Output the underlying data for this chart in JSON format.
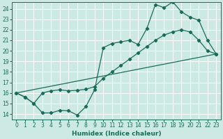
{
  "xlabel": "Humidex (Indice chaleur)",
  "bg_color": "#cce9e4",
  "line_color": "#1a6b5a",
  "grid_color": "#ffffff",
  "xlim": [
    -0.5,
    23.5
  ],
  "ylim": [
    13.5,
    24.6
  ],
  "xticks": [
    0,
    1,
    2,
    3,
    4,
    5,
    6,
    7,
    8,
    9,
    10,
    11,
    12,
    13,
    14,
    15,
    16,
    17,
    18,
    19,
    20,
    21,
    22,
    23
  ],
  "yticks": [
    14,
    15,
    16,
    17,
    18,
    19,
    20,
    21,
    22,
    23,
    24
  ],
  "line1_x": [
    0,
    1,
    2,
    3,
    4,
    5,
    6,
    7,
    8,
    9,
    10,
    11,
    12,
    13,
    14,
    15,
    16,
    17,
    18,
    19,
    20,
    21,
    22,
    23
  ],
  "line1_y": [
    16.0,
    15.6,
    15.0,
    14.1,
    14.1,
    14.35,
    14.3,
    13.9,
    14.7,
    16.3,
    20.3,
    20.7,
    20.85,
    21.0,
    20.6,
    22.1,
    24.4,
    24.1,
    24.65,
    23.7,
    23.2,
    22.9,
    21.0,
    19.7
  ],
  "line2_x": [
    0,
    1,
    2,
    3,
    4,
    5,
    6,
    7,
    8,
    9,
    10,
    11,
    12,
    13,
    14,
    15,
    16,
    17,
    18,
    19,
    20,
    21,
    22,
    23
  ],
  "line2_y": [
    16.0,
    15.6,
    15.0,
    16.0,
    16.2,
    16.3,
    16.2,
    16.25,
    16.35,
    16.6,
    17.4,
    18.0,
    18.6,
    19.2,
    19.8,
    20.4,
    21.0,
    21.5,
    21.8,
    22.0,
    21.8,
    21.0,
    20.0,
    19.7
  ],
  "line3_x": [
    0,
    23
  ],
  "line3_y": [
    16.0,
    19.7
  ]
}
